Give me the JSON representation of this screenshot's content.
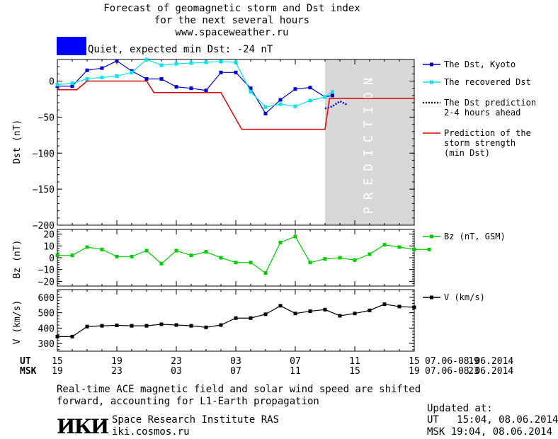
{
  "header": {
    "title_line1": "Forecast of geomagnetic storm and Dst index",
    "title_line2": "for the next several hours",
    "title_line3": "www.spaceweather.ru"
  },
  "status": {
    "text": "Quiet, expected min Dst: -24 nT",
    "color": "#0000ff"
  },
  "prediction_label": "PREDICTION",
  "chart_data": [
    {
      "type": "line",
      "ylabel": "Dst (nT)",
      "ylim": [
        -200,
        30
      ],
      "yticks": [
        0,
        -50,
        -100,
        -150,
        -200
      ],
      "xlim": [
        15,
        39
      ],
      "prediction_start": 33,
      "legend_placement": "right",
      "series": [
        {
          "name": "The Dst, Kyoto",
          "color": "#0000cc",
          "marker": "square",
          "x": [
            15,
            16,
            17,
            18,
            19,
            20,
            21,
            22,
            23,
            24,
            25,
            26,
            27,
            28,
            29,
            30,
            31,
            32,
            33,
            33.5
          ],
          "y": [
            -7,
            -7,
            15,
            18,
            28,
            14,
            3,
            3,
            -8,
            -10,
            -13,
            12,
            12,
            -10,
            -45,
            -26,
            -11,
            -9,
            -22,
            -20
          ]
        },
        {
          "name": "The recovered Dst",
          "color": "#00e5ee",
          "marker": "square",
          "x": [
            15,
            16,
            17,
            18,
            19,
            20,
            21,
            22,
            23,
            24,
            25,
            26,
            27,
            28,
            29,
            30,
            31,
            32,
            33,
            33.5
          ],
          "y": [
            -5,
            -3,
            3,
            5,
            7,
            12,
            30,
            22,
            24,
            25,
            26,
            27,
            26,
            -15,
            -36,
            -32,
            -35,
            -27,
            -22,
            -15
          ]
        },
        {
          "name": "The Dst prediction 2-4 hours ahead",
          "color": "#0000cc",
          "dashed": true,
          "x": [
            33,
            33.5,
            34,
            34.5
          ],
          "y": [
            -38,
            -35,
            -28,
            -33
          ]
        },
        {
          "name": "Prediction of the storm strength (min Dst)",
          "color": "#dd0000",
          "step": true,
          "x": [
            15,
            16.3,
            17,
            21,
            21.5,
            26,
            27.4,
            33,
            33.3,
            39
          ],
          "y": [
            -12,
            -12,
            0,
            0,
            -16,
            -16,
            -67,
            -67,
            -24,
            -24
          ]
        }
      ],
      "legend": [
        {
          "line1": "The Dst, Kyoto"
        },
        {
          "line1": "The recovered Dst"
        },
        {
          "line1": "The Dst prediction",
          "line2": "2-4 hours ahead"
        },
        {
          "line1": "Prediction of the",
          "line2": "storm strength",
          "line3": "(min Dst)"
        }
      ]
    },
    {
      "type": "line",
      "ylabel": "Bz (nT)",
      "ylim": [
        -24,
        24
      ],
      "yticks": [
        20,
        10,
        0,
        -10,
        -20
      ],
      "xlim": [
        15,
        39
      ],
      "series": [
        {
          "name": "Bz (nT, GSM)",
          "color": "#00cc00",
          "marker": "square",
          "x": [
            15,
            16,
            17,
            18,
            19,
            20,
            21,
            22,
            23,
            24,
            25,
            26,
            27,
            28,
            29,
            30,
            31,
            32,
            33,
            34,
            35,
            36,
            37,
            38,
            39,
            40
          ],
          "y": [
            2,
            2,
            9,
            7,
            1,
            1,
            6,
            -5,
            6,
            2,
            5,
            0,
            -4,
            -4,
            -13,
            13,
            18,
            -4,
            -1,
            0,
            -2,
            3,
            11,
            9,
            7,
            7
          ]
        }
      ]
    },
    {
      "type": "line",
      "ylabel": "V (km/s)",
      "ylim": [
        250,
        650
      ],
      "yticks": [
        600,
        500,
        400,
        300
      ],
      "xlim": [
        15,
        39
      ],
      "series": [
        {
          "name": "V (km/s)",
          "color": "#000000",
          "marker": "square",
          "x": [
            15,
            16,
            17,
            18,
            19,
            20,
            21,
            22,
            23,
            24,
            25,
            26,
            27,
            28,
            29,
            30,
            31,
            32,
            33,
            34,
            35,
            36,
            37,
            38,
            39
          ],
          "y": [
            345,
            345,
            410,
            415,
            418,
            415,
            415,
            425,
            420,
            415,
            405,
            420,
            465,
            465,
            490,
            545,
            495,
            510,
            520,
            480,
            495,
            515,
            555,
            540,
            535
          ]
        }
      ]
    }
  ],
  "axis": {
    "ut_label": "UT",
    "msk_label": "MSK",
    "ut_ticks": [
      "15",
      "19",
      "23",
      "03",
      "07",
      "11",
      "15",
      "19"
    ],
    "msk_ticks": [
      "19",
      "23",
      "03",
      "07",
      "11",
      "15",
      "19",
      "23"
    ],
    "ut_range": "07.06-08.06.2014",
    "msk_range": "07.06-08.06.2014"
  },
  "footer": {
    "note_line1": "Real-time ACE magnetic field and solar wind speed are shifted",
    "note_line2": "forward, accounting for L1-Earth propagation",
    "logo_text": "ИКИ",
    "institute": "Space Research Institute RAS",
    "site": "iki.cosmos.ru",
    "updated_label": "Updated at:",
    "updated_ut": "UT   15:04, 08.06.2014",
    "updated_msk": "MSK 19:04, 08.06.2014"
  }
}
